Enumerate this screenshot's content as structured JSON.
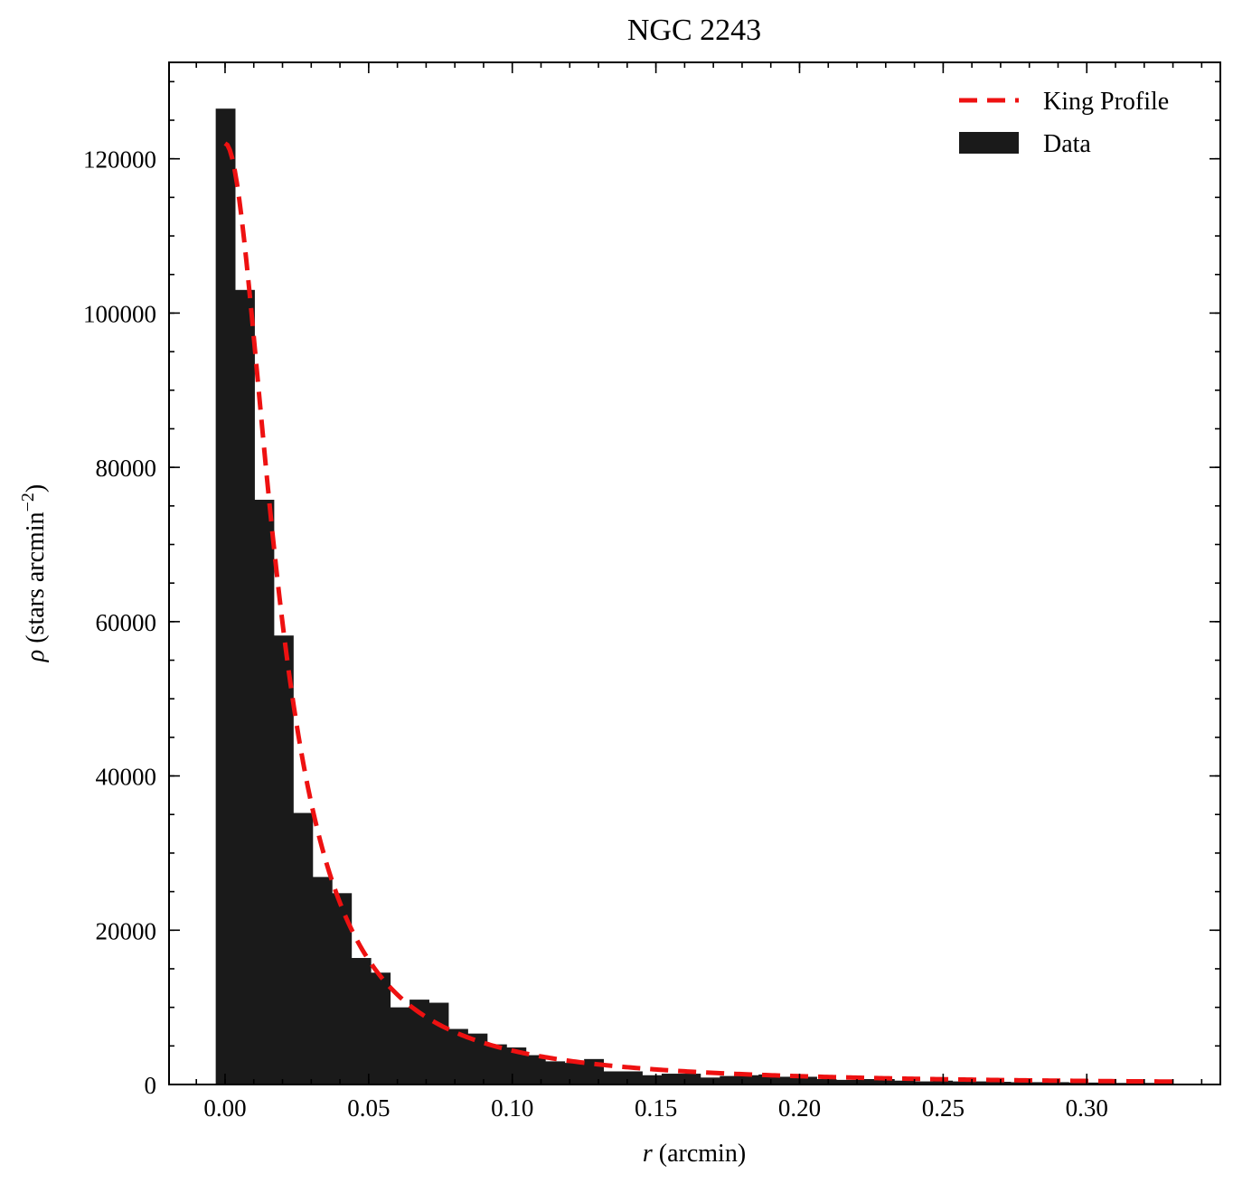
{
  "chart_data": {
    "type": "bar",
    "title": "NGC 2243",
    "xlabel": {
      "var": "r",
      "unit": " (arcmin)"
    },
    "ylabel": {
      "var": "ρ",
      "unit": " (stars arcmin",
      "sup": "−2",
      "close": ")"
    },
    "xlim": [
      -0.0195,
      0.3465
    ],
    "ylim": [
      0,
      132500
    ],
    "xticks": [
      {
        "value": 0.0,
        "label": "0.00"
      },
      {
        "value": 0.05,
        "label": "0.05"
      },
      {
        "value": 0.1,
        "label": "0.10"
      },
      {
        "value": 0.15,
        "label": "0.15"
      },
      {
        "value": 0.2,
        "label": "0.20"
      },
      {
        "value": 0.25,
        "label": "0.25"
      },
      {
        "value": 0.3,
        "label": "0.30"
      }
    ],
    "xminor_step": 0.01,
    "yticks": [
      {
        "value": 0,
        "label": "0"
      },
      {
        "value": 20000,
        "label": "20000"
      },
      {
        "value": 40000,
        "label": "40000"
      },
      {
        "value": 60000,
        "label": "60000"
      },
      {
        "value": 80000,
        "label": "80000"
      },
      {
        "value": 100000,
        "label": "100000"
      },
      {
        "value": 120000,
        "label": "120000"
      }
    ],
    "yminor_step": 5000,
    "grid": false,
    "legend_position": "top-right",
    "series": [
      {
        "name": "King Profile",
        "kind": "line",
        "style": "dashed",
        "color": "#ee1111",
        "model": {
          "rho0": 122000,
          "rc": 0.0197,
          "rt": 4.5,
          "bg": 0,
          "r_start": 0.0,
          "r_end": 0.33
        }
      },
      {
        "name": "Data",
        "kind": "histogram",
        "color": "#1a1a1a",
        "bin_width": 0.00675,
        "bin_start": -0.00325,
        "values": [
          126500,
          103000,
          75800,
          58200,
          35200,
          26900,
          24800,
          16400,
          14500,
          10000,
          11000,
          10600,
          7200,
          6600,
          5200,
          4800,
          3800,
          3000,
          2800,
          3300,
          1700,
          1700,
          1200,
          1400,
          1400,
          900,
          1100,
          1200,
          1300,
          1000,
          1000,
          700,
          600,
          700,
          700,
          500,
          400,
          500,
          400,
          400,
          350,
          300,
          300,
          300,
          250,
          250,
          200,
          200,
          200
        ]
      }
    ]
  }
}
